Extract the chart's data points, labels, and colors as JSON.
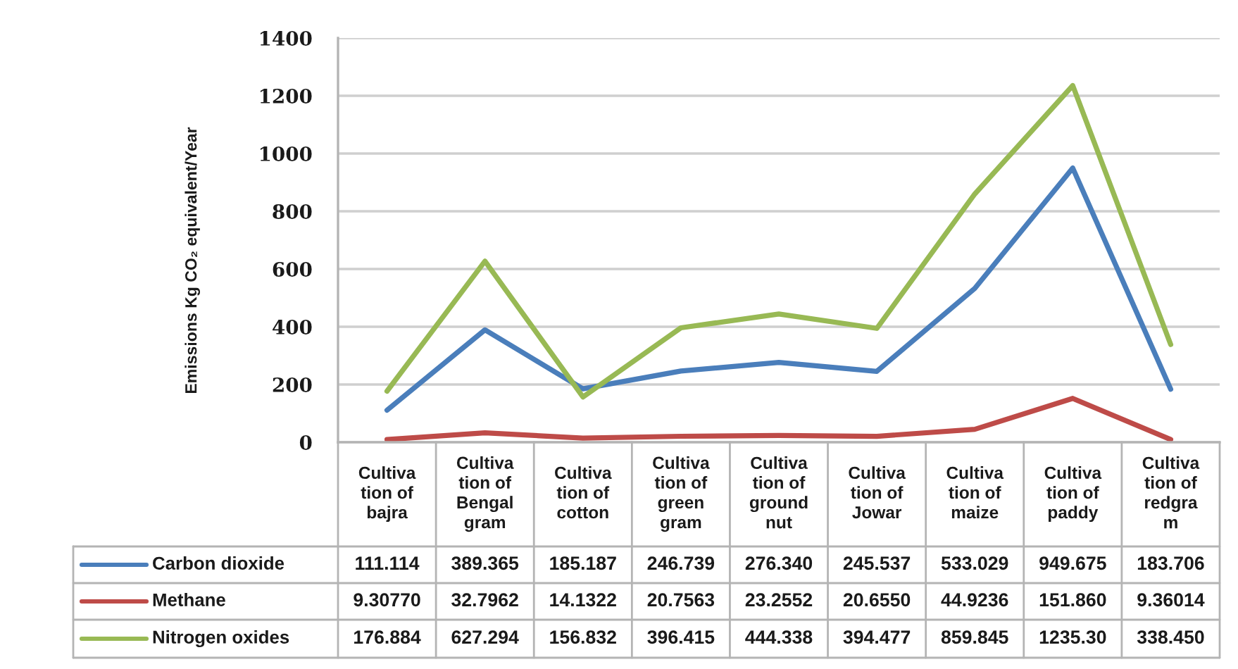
{
  "chart_data": {
    "type": "line",
    "ylabel": "Emissions Kg CO₂ equivalent/Year",
    "categories": [
      "Cultiva\ntion of\nbajra",
      "Cultiva\ntion of\nBengal\ngram",
      "Cultiva\ntion of\ncotton",
      "Cultiva\ntion of\ngreen\ngram",
      "Cultiva\ntion of\nground\nnut",
      "Cultiva\ntion of\nJowar",
      "Cultiva\ntion of\nmaize",
      "Cultiva\ntion of\npaddy",
      "Cultiva\ntion of\nredgra\nm"
    ],
    "series": [
      {
        "name": "Carbon dioxide",
        "color": "#4a7ebb",
        "values": [
          111.114,
          389.365,
          185.187,
          246.739,
          276.34,
          245.537,
          533.029,
          949.675,
          183.706
        ],
        "value_labels": [
          "111.114",
          "389.365",
          "185.187",
          "246.739",
          "276.340",
          "245.537",
          "533.029",
          "949.675",
          "183.706"
        ]
      },
      {
        "name": "Methane",
        "color": "#be4b48",
        "values": [
          9.3077,
          32.7962,
          14.1322,
          20.7563,
          23.2552,
          20.655,
          44.9236,
          151.86,
          9.36014
        ],
        "value_labels": [
          "9.30770",
          "32.7962",
          "14.1322",
          "20.7563",
          "23.2552",
          "20.6550",
          "44.9236",
          "151.860",
          "9.36014"
        ]
      },
      {
        "name": "Nitrogen oxides",
        "color": "#98b954",
        "values": [
          176.884,
          627.294,
          156.832,
          396.415,
          444.338,
          394.477,
          859.845,
          1235.3,
          338.45
        ],
        "value_labels": [
          "176.884",
          "627.294",
          "156.832",
          "396.415",
          "444.338",
          "394.477",
          "859.845",
          "1235.30",
          "338.450"
        ]
      }
    ],
    "ylim": [
      0,
      1400
    ],
    "yticks": [
      0,
      200,
      400,
      600,
      800,
      1000,
      1200,
      1400
    ],
    "grid": "y",
    "legend": "bottom",
    "line_style": "solid"
  }
}
